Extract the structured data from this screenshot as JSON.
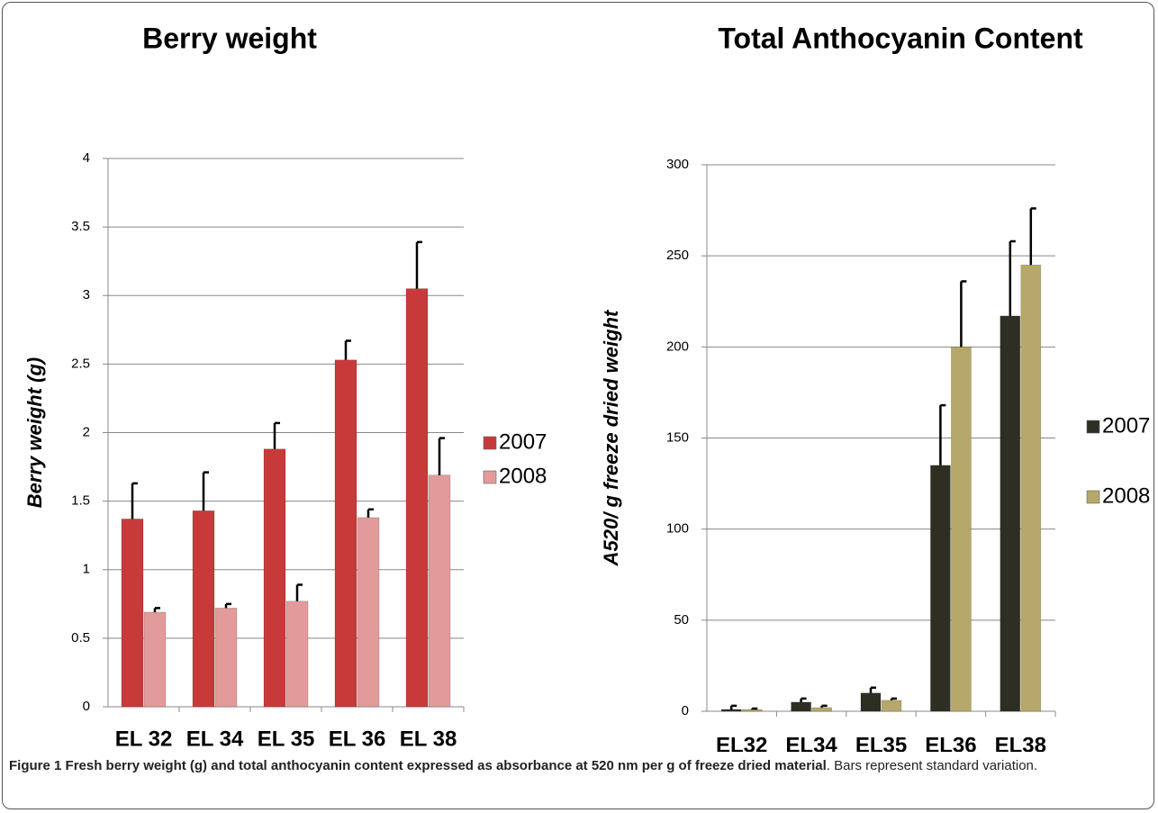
{
  "chart_data": [
    {
      "type": "bar",
      "title": "Berry weight",
      "y_label": "Berry weight (g)",
      "categories": [
        "EL 32",
        "EL 34",
        "EL 35",
        "EL 36",
        "EL 38"
      ],
      "series": [
        {
          "name": "2007",
          "color": "#c83a3a",
          "values": [
            1.37,
            1.43,
            1.88,
            2.53,
            3.05
          ],
          "errors": [
            0.26,
            0.28,
            0.19,
            0.14,
            0.34
          ]
        },
        {
          "name": "2008",
          "color": "#e29a9a",
          "values": [
            0.69,
            0.72,
            0.77,
            1.38,
            1.69
          ],
          "errors": [
            0.03,
            0.03,
            0.12,
            0.06,
            0.27
          ]
        }
      ],
      "ylim": [
        0,
        4
      ],
      "yticks": [
        0,
        0.5,
        1,
        1.5,
        2,
        2.5,
        3,
        3.5,
        4
      ],
      "grid": true,
      "legend": "right"
    },
    {
      "type": "bar",
      "title": "Total Anthocyanin Content",
      "y_label": "A520/ g freeze dried weight",
      "categories": [
        "EL32",
        "EL34",
        "EL35",
        "EL36",
        "EL38"
      ],
      "series": [
        {
          "name": "2007",
          "color": "#2f2e22",
          "values": [
            1,
            5,
            10,
            135,
            217
          ],
          "errors": [
            2,
            2,
            3,
            33,
            41
          ]
        },
        {
          "name": "2008",
          "color": "#b5a86a",
          "values": [
            1,
            2,
            6,
            200,
            245
          ],
          "errors": [
            0.5,
            1,
            1,
            36,
            31
          ]
        }
      ],
      "ylim": [
        0,
        300
      ],
      "yticks": [
        0,
        50,
        100,
        150,
        200,
        250,
        300
      ],
      "grid": true,
      "legend": "right"
    }
  ],
  "caption": {
    "label": "Figure 1",
    "bold": "Fresh berry weight (g) and total anthocyanin content expressed as absorbance at 520 nm per g of freeze dried material",
    "text": ". Bars represent standard variation."
  }
}
